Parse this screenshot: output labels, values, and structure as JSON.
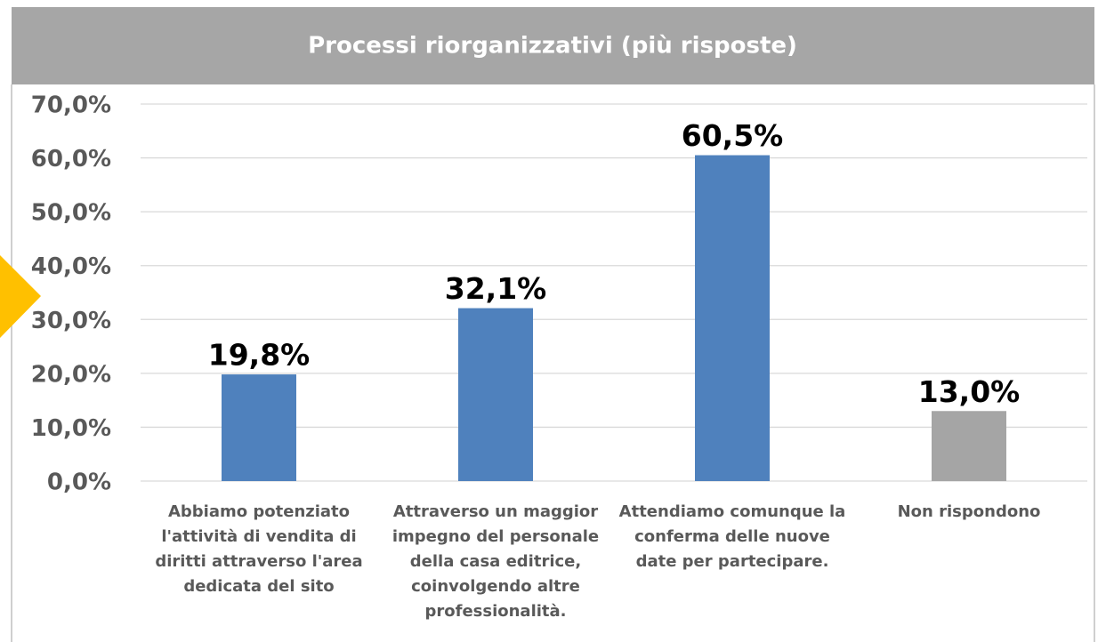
{
  "chart_data": {
    "type": "bar",
    "title": "Processi riorganizzativi (più risposte)",
    "categories": [
      "Abbiamo potenziato l'attività di vendita di diritti attraverso l'area dedicata del sito",
      "Attraverso un maggior impegno del personale della casa editrice, coinvolgendo altre professionalità.",
      "Attendiamo comunque la conferma delle nuove date per partecipare.",
      "Non rispondono"
    ],
    "values": [
      19.8,
      32.1,
      60.5,
      13.0
    ],
    "value_labels": [
      "19,8%",
      "32,1%",
      "60,5%",
      "13,0%"
    ],
    "colors": [
      "#4f81bd",
      "#4f81bd",
      "#4f81bd",
      "#a5a5a5"
    ],
    "ylim": [
      0,
      70
    ],
    "yticks": [
      {
        "value": 0,
        "label": "0,0%"
      },
      {
        "value": 10,
        "label": "10,0%"
      },
      {
        "value": 20,
        "label": "20,0%"
      },
      {
        "value": 30,
        "label": "30,0%"
      },
      {
        "value": 40,
        "label": "40,0%"
      },
      {
        "value": 50,
        "label": "50,0%"
      },
      {
        "value": 60,
        "label": "60,0%"
      },
      {
        "value": 70,
        "label": "70,0%"
      }
    ],
    "grid": true
  }
}
